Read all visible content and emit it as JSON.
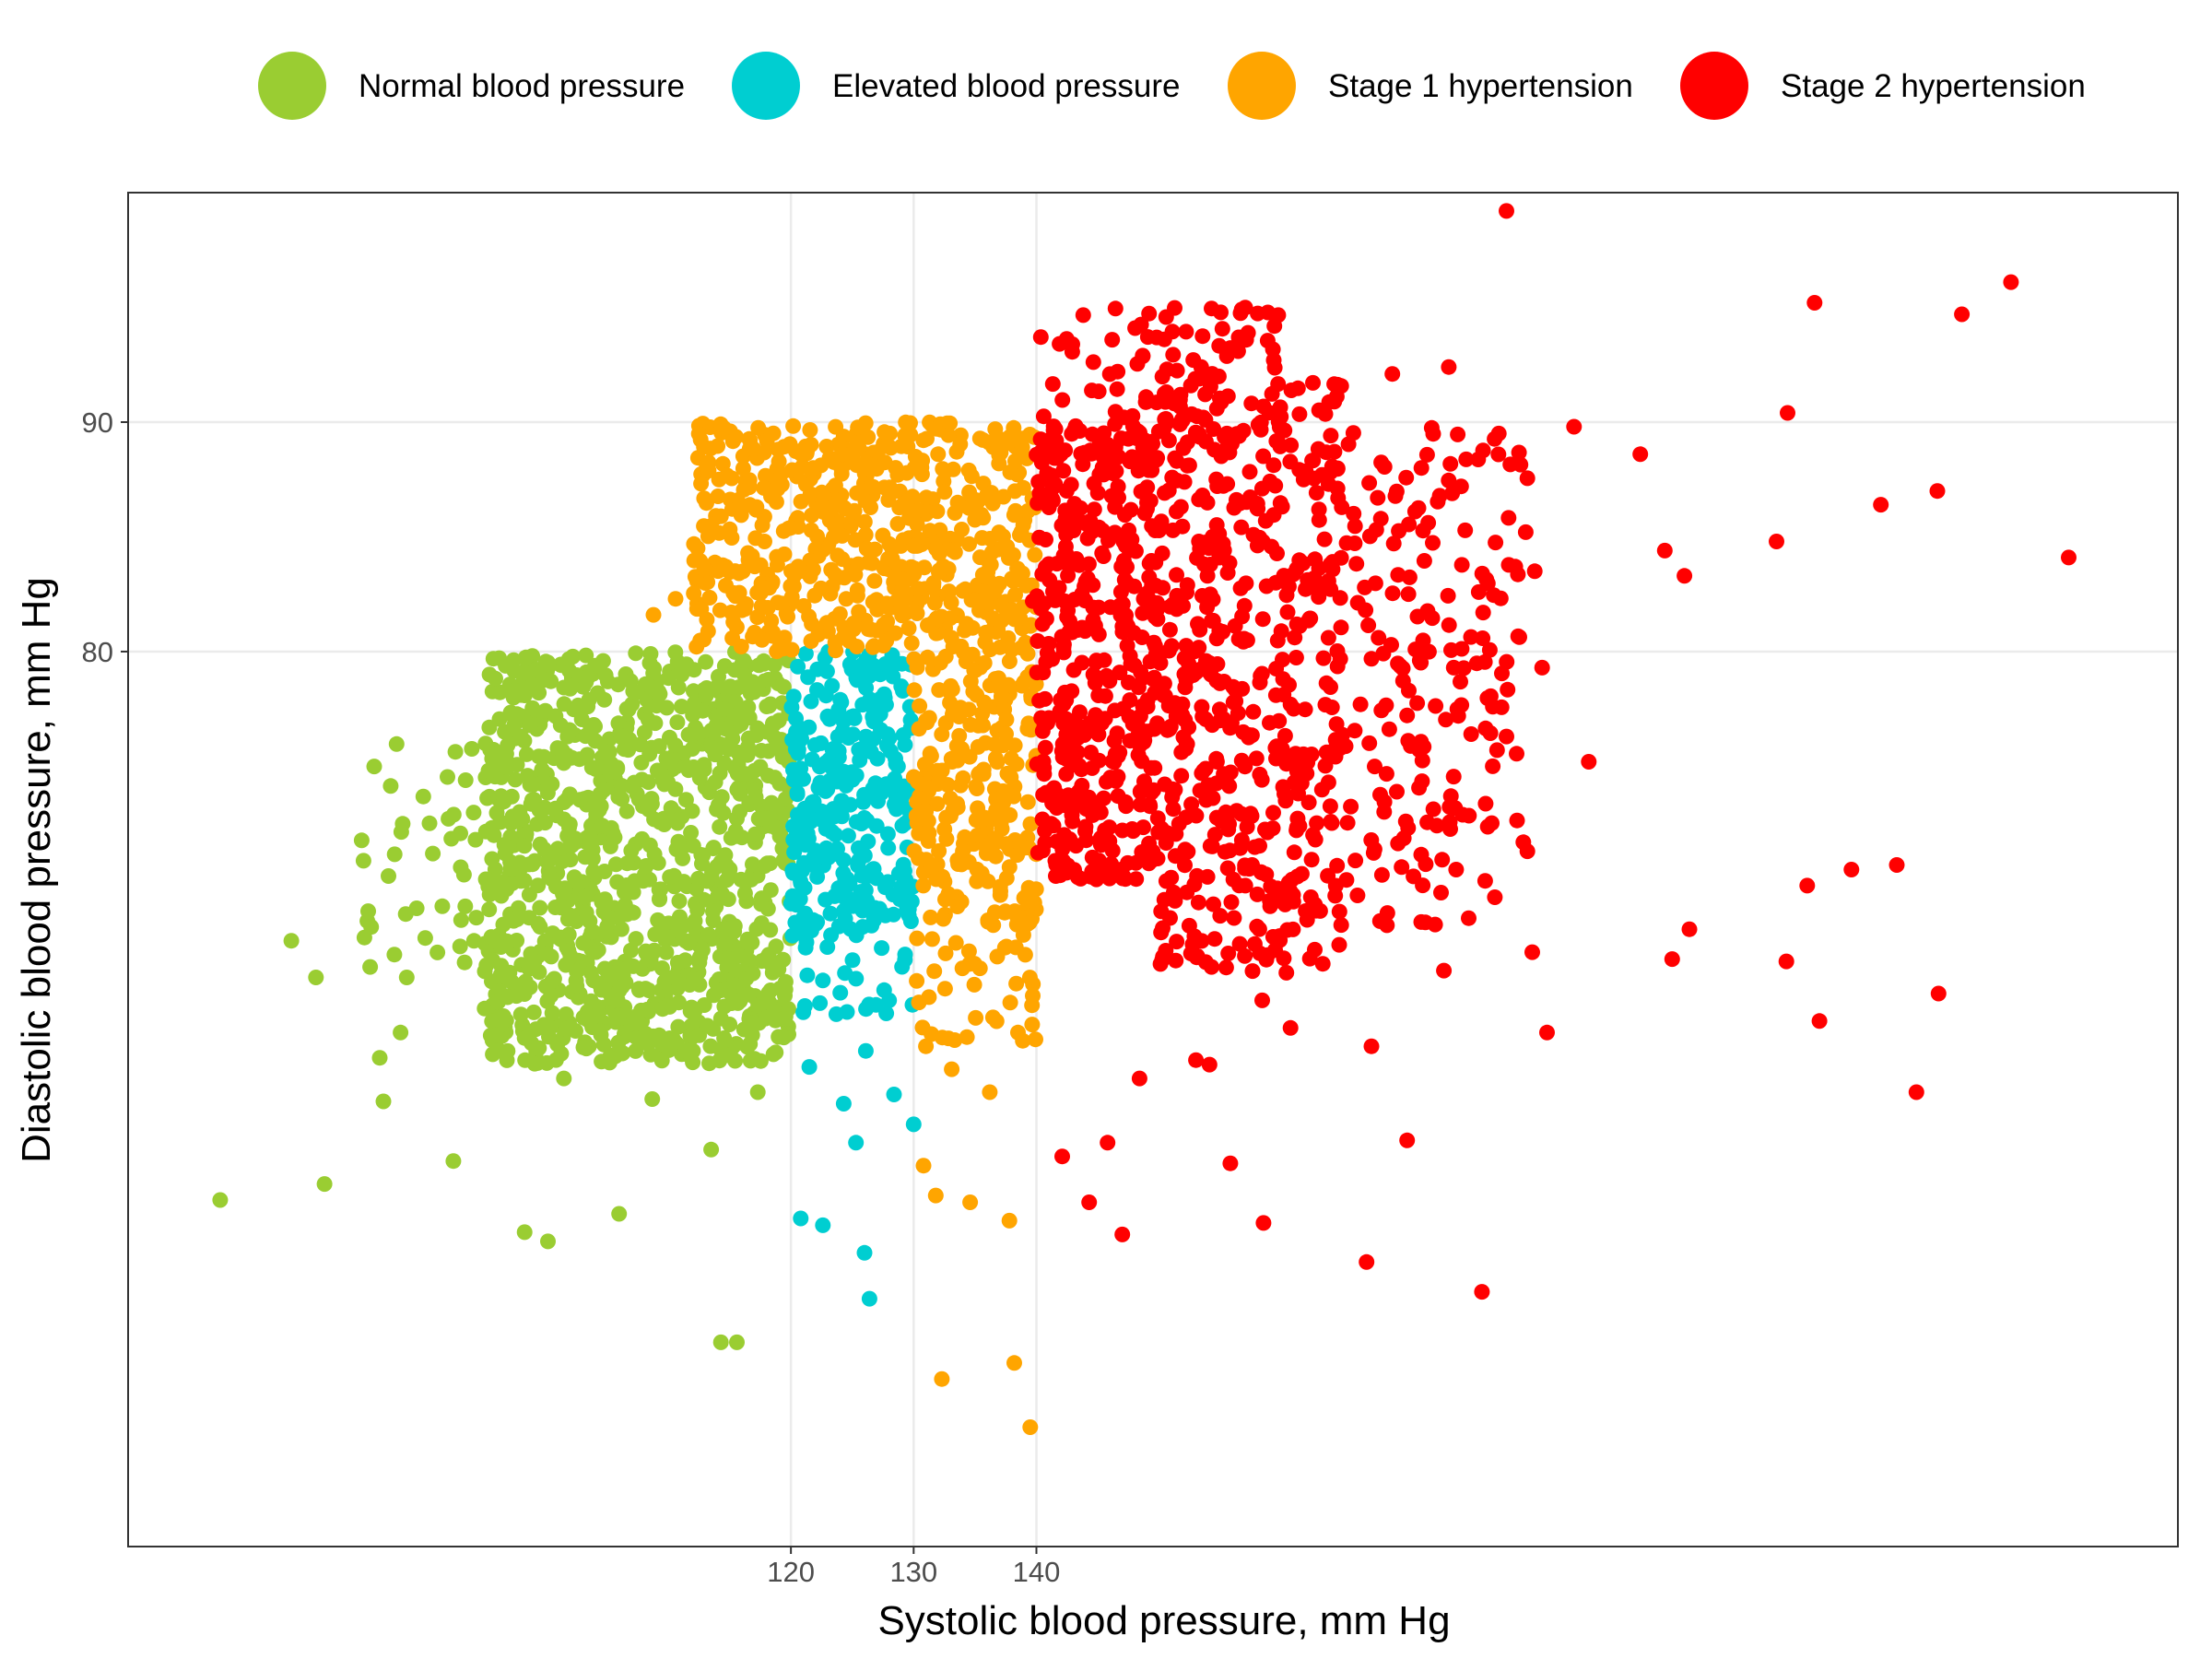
{
  "chart_data": {
    "type": "scatter",
    "title": "",
    "xlabel": "Systolic blood pressure, mm Hg",
    "ylabel": "Diastolic blood pressure, mm Hg",
    "xlim": [
      66,
      233
    ],
    "ylim": [
      41,
      100
    ],
    "x_ticks": [
      120,
      130,
      140
    ],
    "y_ticks": [
      80,
      90
    ],
    "grid": true,
    "legend_position": "top",
    "series": [
      {
        "name": "Normal blood pressure",
        "color": "#9acd32",
        "points": [
          [
            73.5,
            56.1
          ],
          [
            82.0,
            56.8
          ],
          [
            86.8,
            60.4
          ],
          [
            86.5,
            62.3
          ],
          [
            88.2,
            63.4
          ],
          [
            81.3,
            65.8
          ],
          [
            88.7,
            65.8
          ],
          [
            79.3,
            67.4
          ],
          [
            91.6,
            68.9
          ],
          [
            94.3,
            71.8
          ],
          [
            85.8,
            68.0
          ],
          [
            95.8,
            72.0
          ],
          [
            99.0,
            74.2
          ],
          [
            101.8,
            76.3
          ],
          [
            104.8,
            77.9
          ],
          [
            98.0,
            76.3
          ],
          [
            108.5,
            79.5
          ],
          [
            110.2,
            75.2
          ],
          [
            100.3,
            70.2
          ],
          [
            104.1,
            66.9
          ],
          [
            108.3,
            64.4
          ],
          [
            112.0,
            62.1
          ],
          [
            117.3,
            60.8
          ],
          [
            119.4,
            64.0
          ],
          [
            113.5,
            58.3
          ],
          [
            106.0,
            55.5
          ],
          [
            98.3,
            54.7
          ],
          [
            100.2,
            54.3
          ],
          [
            114.3,
            49.9
          ],
          [
            115.6,
            49.9
          ],
          [
            92.5,
            57.8
          ],
          [
            96.0,
            63.3
          ],
          [
            101.5,
            61.4
          ],
          [
            108.7,
            60.5
          ],
          [
            116.8,
            63.8
          ],
          [
            118.8,
            66.4
          ],
          [
            112.6,
            66.7
          ],
          [
            104.9,
            67.8
          ],
          [
            97.3,
            69.9
          ],
          [
            93.1,
            70.6
          ]
        ],
        "fill_region": {
          "x": [
            85,
            120
          ],
          "y": [
            62,
            80
          ]
        }
      },
      {
        "name": "Elevated blood pressure",
        "color": "#00ced1",
        "points": [
          [
            120.8,
            55.3
          ],
          [
            122.6,
            55.0
          ],
          [
            126.4,
            51.8
          ],
          [
            126.0,
            53.8
          ],
          [
            125.3,
            58.6
          ],
          [
            128.4,
            60.7
          ],
          [
            130.0,
            59.4
          ],
          [
            121.5,
            61.9
          ],
          [
            123.7,
            64.2
          ],
          [
            128.0,
            64.8
          ],
          [
            126.1,
            62.6
          ],
          [
            129.3,
            66.8
          ],
          [
            121.2,
            67.1
          ],
          [
            124.3,
            60.3
          ],
          [
            127.7,
            68.5
          ]
        ],
        "fill_region": {
          "x": [
            120,
            130
          ],
          "y": [
            68,
            80
          ]
        }
      },
      {
        "name": "Stage 1 hypertension",
        "color": "#ffa500",
        "points": [
          [
            130.8,
            57.6
          ],
          [
            131.8,
            56.3
          ],
          [
            134.6,
            56.0
          ],
          [
            137.8,
            55.2
          ],
          [
            138.2,
            49.0
          ],
          [
            139.5,
            46.2
          ],
          [
            132.3,
            48.3
          ],
          [
            131.0,
            62.8
          ],
          [
            133.1,
            61.8
          ],
          [
            136.2,
            60.8
          ],
          [
            138.5,
            63.4
          ],
          [
            139.7,
            65.0
          ],
          [
            135.4,
            66.2
          ],
          [
            112.4,
            84.5
          ],
          [
            110.6,
            82.3
          ],
          [
            108.8,
            81.6
          ],
          [
            114.3,
            85.9
          ],
          [
            117.2,
            86.3
          ],
          [
            121.8,
            88.0
          ]
        ],
        "fill_region": {
          "x": [
            110,
            140
          ],
          "y": [
            80,
            90
          ],
          "x2": [
            130,
            140
          ],
          "y2": [
            68,
            80
          ]
        }
      },
      {
        "name": "Stage 2 hypertension",
        "color": "#ff0000",
        "points": [
          [
            219.4,
            96.1
          ],
          [
            215.4,
            94.7
          ],
          [
            203.4,
            95.2
          ],
          [
            178.3,
            99.2
          ],
          [
            169.0,
            92.1
          ],
          [
            173.6,
            92.4
          ],
          [
            183.8,
            89.8
          ],
          [
            189.2,
            88.6
          ],
          [
            174.6,
            87.2
          ],
          [
            201.2,
            90.4
          ],
          [
            213.4,
            87.0
          ],
          [
            208.8,
            86.4
          ],
          [
            200.3,
            84.8
          ],
          [
            191.2,
            84.4
          ],
          [
            180.6,
            83.5
          ],
          [
            224.1,
            84.1
          ],
          [
            192.8,
            83.3
          ],
          [
            154.5,
            88.8
          ],
          [
            163.8,
            87.3
          ],
          [
            146.4,
            86.3
          ],
          [
            144.6,
            82.9
          ],
          [
            139.7,
            82.2
          ],
          [
            159.5,
            83.0
          ],
          [
            176.4,
            81.7
          ],
          [
            181.2,
            79.3
          ],
          [
            163.8,
            80.6
          ],
          [
            174.0,
            79.3
          ],
          [
            150.1,
            79.5
          ],
          [
            159.0,
            76.9
          ],
          [
            152.4,
            76.7
          ],
          [
            160.2,
            73.8
          ],
          [
            163.8,
            74.3
          ],
          [
            170.1,
            72.6
          ],
          [
            166.4,
            77.7
          ],
          [
            178.3,
            76.3
          ],
          [
            185.0,
            75.2
          ],
          [
            180.0,
            71.3
          ],
          [
            174.2,
            70.5
          ],
          [
            171.7,
            68.2
          ],
          [
            173.2,
            66.1
          ],
          [
            180.4,
            66.9
          ],
          [
            191.8,
            66.6
          ],
          [
            193.2,
            67.9
          ],
          [
            201.1,
            66.5
          ],
          [
            202.8,
            69.8
          ],
          [
            206.4,
            70.5
          ],
          [
            210.1,
            70.7
          ],
          [
            213.5,
            65.1
          ],
          [
            203.8,
            63.9
          ],
          [
            211.7,
            60.8
          ],
          [
            181.6,
            63.4
          ],
          [
            167.3,
            62.8
          ],
          [
            158.4,
            64.8
          ],
          [
            150.3,
            66.7
          ],
          [
            153.0,
            62.2
          ],
          [
            148.4,
            61.4
          ],
          [
            145.8,
            58.6
          ],
          [
            142.1,
            58.0
          ],
          [
            147.0,
            54.6
          ],
          [
            158.5,
            55.1
          ],
          [
            166.9,
            53.4
          ],
          [
            170.2,
            58.7
          ],
          [
            144.3,
            56.0
          ],
          [
            154.1,
            62.0
          ],
          [
            155.8,
            57.7
          ],
          [
            160.7,
            63.6
          ],
          [
            176.3,
            52.1
          ]
        ]
      }
    ]
  },
  "legend": {
    "items": [
      {
        "label": "Normal blood pressure",
        "color": "#9acd32"
      },
      {
        "label": "Elevated blood pressure",
        "color": "#00ced1"
      },
      {
        "label": "Stage 1 hypertension",
        "color": "#ffa500"
      },
      {
        "label": "Stage 2 hypertension",
        "color": "#ff0000"
      }
    ]
  }
}
